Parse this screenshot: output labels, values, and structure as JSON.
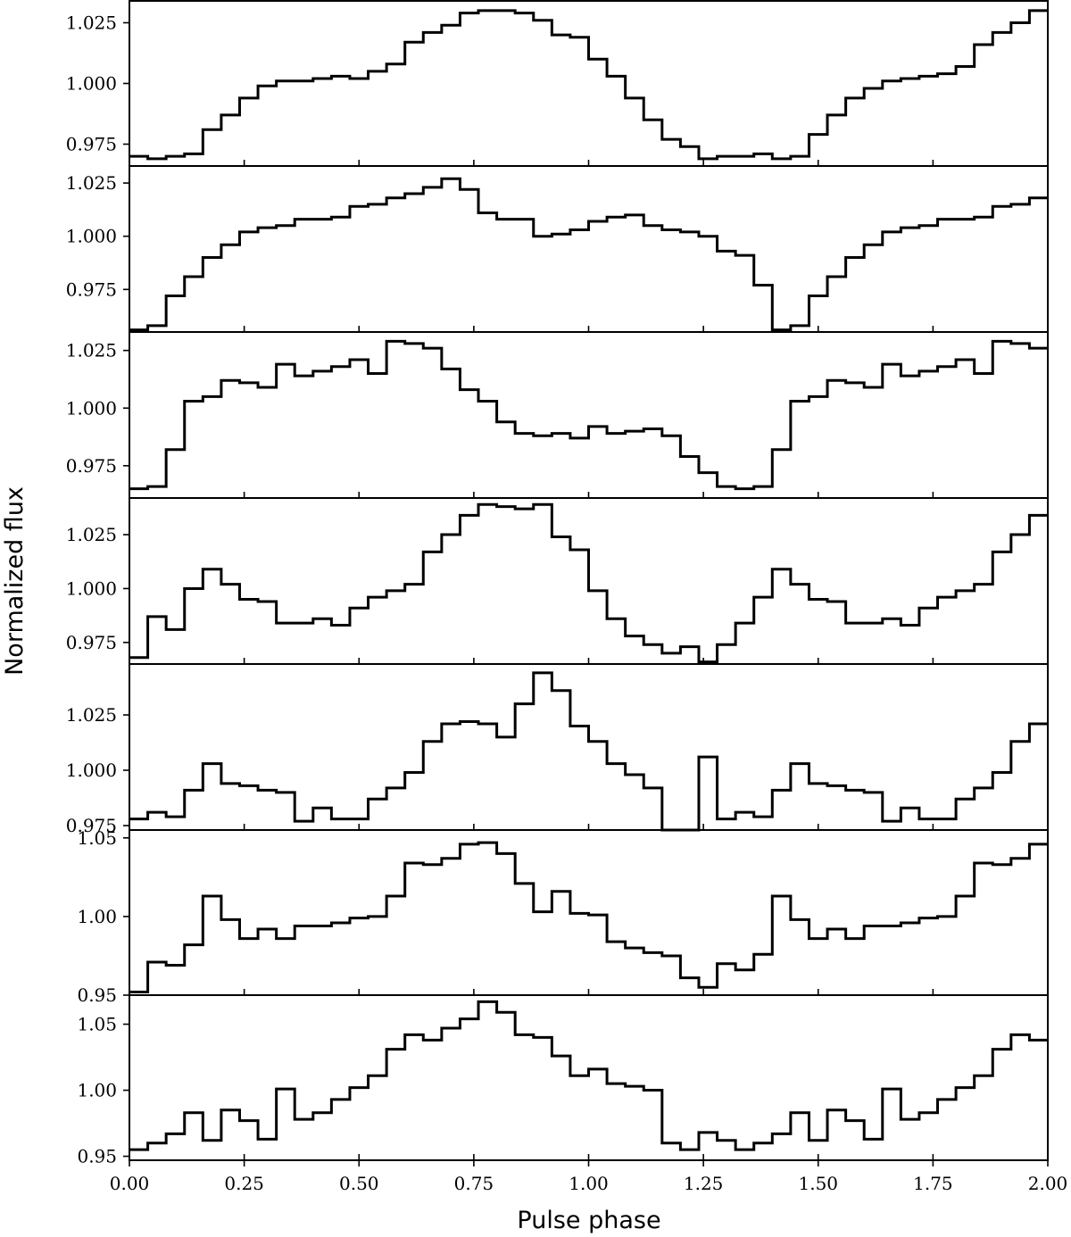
{
  "chart_data": {
    "type": "line",
    "xlabel": "Pulse phase",
    "ylabel": "Normalized flux",
    "xlim": [
      0.0,
      2.0
    ],
    "x_ticks": [
      "0.00",
      "0.25",
      "0.50",
      "0.75",
      "1.00",
      "1.25",
      "1.50",
      "1.75",
      "2.00"
    ],
    "x_tick_values": [
      0.0,
      0.25,
      0.5,
      0.75,
      1.0,
      1.25,
      1.5,
      1.75,
      2.0
    ],
    "step_style": "histogram step, 50 bins per cycle, 2 cycles",
    "panels": [
      {
        "ylim": [
          0.966,
          1.034
        ],
        "yticks": [
          "0.975",
          "1.000",
          "1.025"
        ],
        "ytick_values": [
          0.975,
          1.0,
          1.025
        ],
        "values": [
          0.97,
          0.969,
          0.97,
          0.971,
          0.981,
          0.987,
          0.994,
          0.999,
          1.001,
          1.001,
          1.002,
          1.003,
          1.002,
          1.005,
          1.008,
          1.017,
          1.021,
          1.024,
          1.029,
          1.03,
          1.03,
          1.029,
          1.026,
          1.02,
          1.019,
          1.01,
          1.003,
          0.994,
          0.985,
          0.977,
          0.974,
          0.969,
          0.97,
          0.97,
          0.971,
          0.969,
          0.97,
          0.979,
          0.987,
          0.994,
          0.998,
          1.001,
          1.002,
          1.003,
          1.004,
          1.007,
          1.016,
          1.021,
          1.025,
          1.03
        ]
      },
      {
        "ylim": [
          0.955,
          1.033
        ],
        "yticks": [
          "0.975",
          "1.000",
          "1.025"
        ],
        "ytick_values": [
          0.975,
          1.0,
          1.025
        ],
        "values": [
          0.956,
          0.958,
          0.972,
          0.981,
          0.99,
          0.996,
          1.002,
          1.004,
          1.005,
          1.008,
          1.008,
          1.009,
          1.014,
          1.015,
          1.018,
          1.02,
          1.023,
          1.027,
          1.022,
          1.011,
          1.008,
          1.008,
          1.0,
          1.001,
          1.003,
          1.007,
          1.009,
          1.01,
          1.005,
          1.003,
          1.002,
          1.0,
          0.993,
          0.991,
          0.977,
          0.956,
          0.958,
          0.972,
          0.981,
          0.99,
          0.996,
          1.002,
          1.004,
          1.005,
          1.008,
          1.008,
          1.009,
          1.014,
          1.015,
          1.018
        ]
      },
      {
        "ylim": [
          0.961,
          1.033
        ],
        "yticks": [
          "0.975",
          "1.000",
          "1.025"
        ],
        "ytick_values": [
          0.975,
          1.0,
          1.025
        ],
        "values": [
          0.965,
          0.966,
          0.982,
          1.003,
          1.005,
          1.012,
          1.011,
          1.009,
          1.019,
          1.014,
          1.016,
          1.018,
          1.021,
          1.015,
          1.029,
          1.028,
          1.026,
          1.017,
          1.008,
          1.003,
          0.994,
          0.989,
          0.988,
          0.989,
          0.987,
          0.992,
          0.989,
          0.99,
          0.991,
          0.988,
          0.979,
          0.972,
          0.966,
          0.965,
          0.966,
          0.982,
          1.003,
          1.005,
          1.012,
          1.011,
          1.009,
          1.019,
          1.014,
          1.016,
          1.018,
          1.021,
          1.015,
          1.029,
          1.028,
          1.026
        ]
      },
      {
        "ylim": [
          0.965,
          1.042
        ],
        "yticks": [
          "0.975",
          "1.000",
          "1.025"
        ],
        "ytick_values": [
          0.975,
          1.0,
          1.025
        ],
        "values": [
          0.968,
          0.987,
          0.981,
          1.0,
          1.009,
          1.002,
          0.995,
          0.994,
          0.984,
          0.984,
          0.986,
          0.983,
          0.991,
          0.996,
          0.999,
          1.002,
          1.017,
          1.025,
          1.034,
          1.039,
          1.038,
          1.037,
          1.039,
          1.024,
          1.018,
          0.999,
          0.986,
          0.978,
          0.974,
          0.97,
          0.973,
          0.966,
          0.974,
          0.984,
          0.996,
          1.009,
          1.002,
          0.995,
          0.994,
          0.984,
          0.984,
          0.986,
          0.983,
          0.991,
          0.996,
          0.999,
          1.002,
          1.017,
          1.025,
          1.034
        ]
      },
      {
        "ylim": [
          0.973,
          1.048
        ],
        "yticks": [
          "0.975",
          "1.000",
          "1.025"
        ],
        "ytick_values": [
          0.975,
          1.0,
          1.025
        ],
        "values": [
          0.978,
          0.981,
          0.979,
          0.991,
          1.003,
          0.994,
          0.993,
          0.991,
          0.99,
          0.977,
          0.983,
          0.978,
          0.978,
          0.987,
          0.992,
          0.999,
          1.013,
          1.021,
          1.022,
          1.021,
          1.015,
          1.03,
          1.044,
          1.036,
          1.02,
          1.013,
          1.003,
          0.998,
          0.992,
          0.973,
          0.973,
          1.006,
          0.978,
          0.981,
          0.979,
          0.991,
          1.003,
          0.994,
          0.993,
          0.991,
          0.99,
          0.977,
          0.983,
          0.978,
          0.978,
          0.987,
          0.992,
          0.999,
          1.013,
          1.021
        ]
      },
      {
        "ylim": [
          0.95,
          1.055
        ],
        "yticks": [
          "0.95",
          "1.00",
          "1.05"
        ],
        "ytick_values": [
          0.95,
          1.0,
          1.05
        ],
        "values": [
          0.952,
          0.971,
          0.969,
          0.982,
          1.013,
          0.998,
          0.986,
          0.992,
          0.986,
          0.994,
          0.994,
          0.996,
          0.999,
          1.0,
          1.013,
          1.034,
          1.033,
          1.037,
          1.046,
          1.047,
          1.04,
          1.021,
          1.003,
          1.016,
          1.002,
          1.001,
          0.984,
          0.98,
          0.977,
          0.975,
          0.961,
          0.955,
          0.97,
          0.966,
          0.976,
          1.013,
          0.998,
          0.986,
          0.992,
          0.986,
          0.994,
          0.994,
          0.996,
          0.999,
          1.0,
          1.013,
          1.034,
          1.033,
          1.037,
          1.046
        ]
      },
      {
        "ylim": [
          0.947,
          1.072
        ],
        "yticks": [
          "0.95",
          "1.00",
          "1.05"
        ],
        "ytick_values": [
          0.95,
          1.0,
          1.05
        ],
        "values": [
          0.955,
          0.96,
          0.967,
          0.983,
          0.962,
          0.985,
          0.977,
          0.963,
          1.001,
          0.978,
          0.983,
          0.993,
          1.002,
          1.011,
          1.031,
          1.042,
          1.038,
          1.047,
          1.054,
          1.067,
          1.059,
          1.042,
          1.04,
          1.026,
          1.011,
          1.016,
          1.005,
          1.003,
          1.0,
          0.96,
          0.955,
          0.968,
          0.962,
          0.955,
          0.96,
          0.967,
          0.983,
          0.962,
          0.985,
          0.977,
          0.963,
          1.001,
          0.978,
          0.983,
          0.993,
          1.002,
          1.011,
          1.031,
          1.042,
          1.038
        ]
      }
    ]
  }
}
